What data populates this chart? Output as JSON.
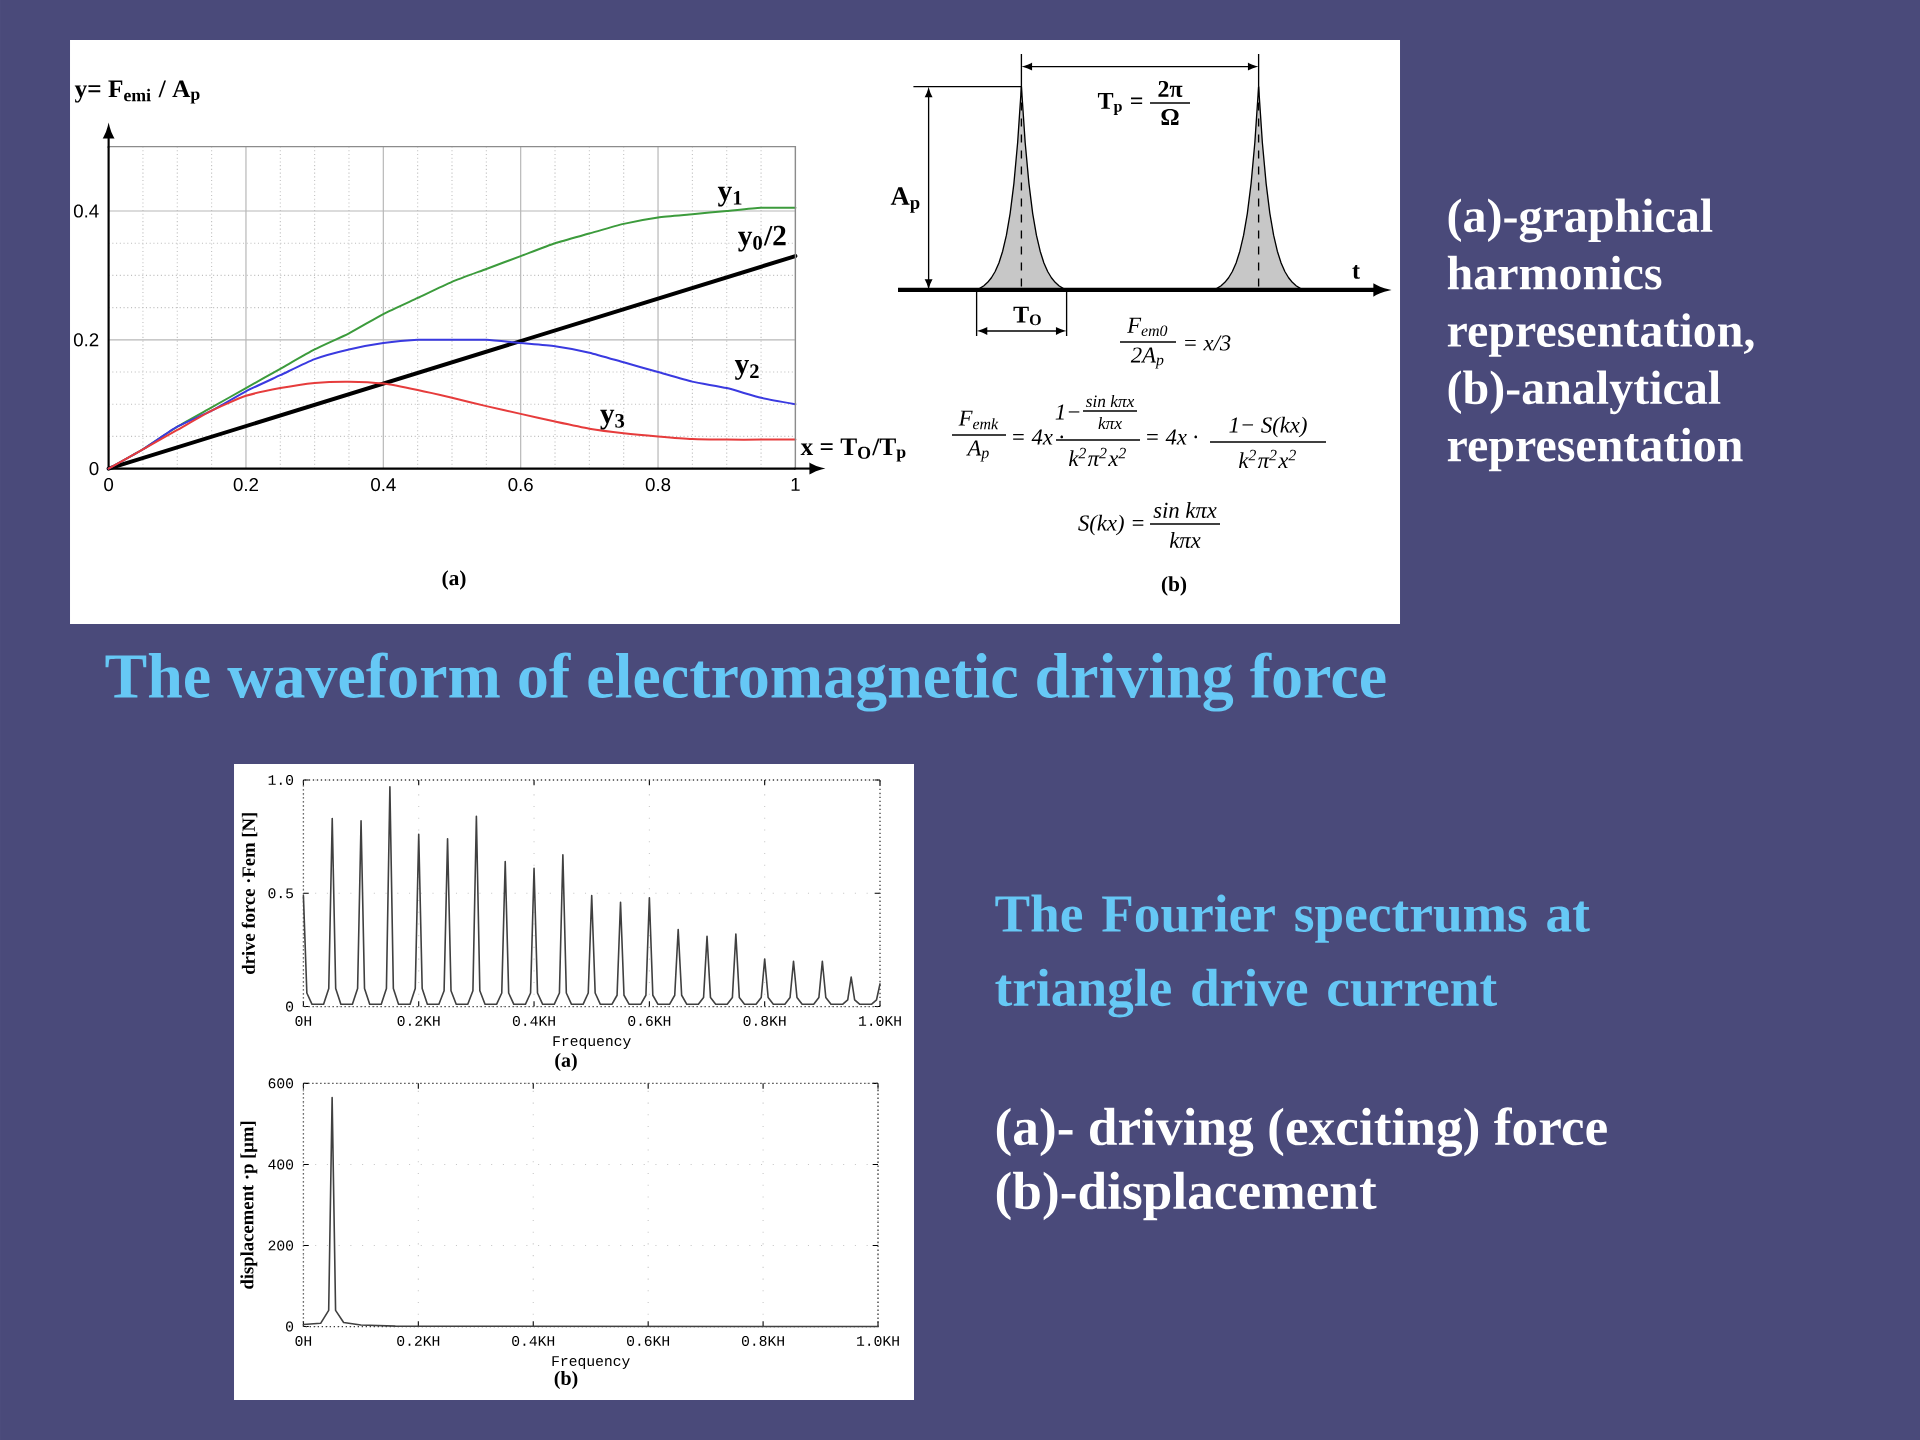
{
  "chart_data": [
    {
      "type": "line",
      "xlabel": "x = T$_{O}$/T$_{p}$",
      "ylabel": "y= F$_{emi}$ / A$_{p}$",
      "x": [
        0,
        0.05,
        0.1,
        0.15,
        0.2,
        0.25,
        0.3,
        0.35,
        0.4,
        0.45,
        0.5,
        0.55,
        0.6,
        0.65,
        0.7,
        0.75,
        0.8,
        0.85,
        0.9,
        0.95,
        1
      ],
      "series": [
        {
          "name": "y$_{1}$",
          "color": "#3c9b3c",
          "values": [
            0,
            0.03,
            0.065,
            0.095,
            0.125,
            0.155,
            0.185,
            0.21,
            0.24,
            0.265,
            0.29,
            0.31,
            0.33,
            0.35,
            0.365,
            0.38,
            0.39,
            0.395,
            0.4,
            0.405,
            0.405
          ]
        },
        {
          "name": "y$_{0}$/2",
          "color": "#000000",
          "x": [
            0,
            1
          ],
          "values": [
            0,
            0.33
          ]
        },
        {
          "name": "y$_{2}$",
          "color": "#3a3ae0",
          "values": [
            0,
            0.03,
            0.065,
            0.09,
            0.12,
            0.145,
            0.17,
            0.185,
            0.195,
            0.2,
            0.2,
            0.2,
            0.195,
            0.19,
            0.18,
            0.165,
            0.15,
            0.135,
            0.125,
            0.11,
            0.1
          ]
        },
        {
          "name": "y$_{3}$",
          "color": "#e63c3c",
          "values": [
            0,
            0.03,
            0.06,
            0.09,
            0.113,
            0.125,
            0.133,
            0.135,
            0.132,
            0.122,
            0.11,
            0.097,
            0.085,
            0.073,
            0.062,
            0.055,
            0.05,
            0.046,
            0.045,
            0.045,
            0.045
          ]
        }
      ],
      "xlim": [
        0,
        1
      ],
      "ylim": [
        0,
        0.5
      ],
      "xticks": [
        0,
        0.2,
        0.4,
        0.6,
        0.8,
        1
      ],
      "yticks": [
        0,
        0.2,
        0.4
      ],
      "grid": true,
      "annotations": [
        "(a)"
      ]
    },
    {
      "type": "other",
      "annotations": [
        "T$_{p}$ =",
        "2π",
        "Ω",
        "A$_{p}$",
        "t",
        "T$_{O}$",
        "F$_{em0}$",
        "2A$_{p}$",
        "= x/3",
        "F$_{emk}$",
        "A$_{p}$",
        "= 4x ·",
        "1−",
        "sin kπx",
        "kπx",
        "k$^{2}$π$^{2}$x$^{2}$",
        "= 4x ·",
        "1− S(kx)",
        "k$^{2}$π$^{2}$x$^{2}$",
        "S(kx) =",
        "sin kπx",
        "kπx",
        "(b)"
      ]
    },
    {
      "type": "other",
      "title": "The waveform of electromagnetic driving force",
      "annotations": [
        "(a)-graphical harmonics representation, (b)-analytical representation"
      ]
    },
    {
      "type": "line",
      "xlabel": "Frequency",
      "ylabel": "drive force ·Fem [N]",
      "x": [
        0,
        0.006,
        0.015,
        0.035,
        0.044,
        0.05,
        0.056,
        0.065,
        0.085,
        0.094,
        0.1,
        0.106,
        0.115,
        0.135,
        0.144,
        0.15,
        0.156,
        0.165,
        0.185,
        0.194,
        0.2,
        0.206,
        0.215,
        0.235,
        0.244,
        0.25,
        0.256,
        0.265,
        0.285,
        0.294,
        0.3,
        0.306,
        0.315,
        0.335,
        0.344,
        0.35,
        0.356,
        0.365,
        0.385,
        0.394,
        0.4,
        0.406,
        0.415,
        0.435,
        0.444,
        0.45,
        0.456,
        0.465,
        0.485,
        0.494,
        0.5,
        0.506,
        0.515,
        0.535,
        0.544,
        0.55,
        0.556,
        0.565,
        0.585,
        0.594,
        0.6,
        0.606,
        0.615,
        0.635,
        0.644,
        0.65,
        0.656,
        0.665,
        0.685,
        0.694,
        0.7,
        0.706,
        0.715,
        0.735,
        0.744,
        0.75,
        0.756,
        0.765,
        0.785,
        0.794,
        0.8,
        0.806,
        0.815,
        0.835,
        0.844,
        0.85,
        0.856,
        0.865,
        0.885,
        0.894,
        0.9,
        0.906,
        0.915,
        0.935,
        0.944,
        0.95,
        0.956,
        0.965,
        0.985,
        0.994,
        1
      ],
      "values": [
        0.49,
        0.06,
        0.01,
        0.01,
        0.08,
        0.83,
        0.08,
        0.01,
        0.01,
        0.08,
        0.82,
        0.08,
        0.01,
        0.01,
        0.08,
        0.97,
        0.08,
        0.01,
        0.01,
        0.08,
        0.76,
        0.08,
        0.01,
        0.01,
        0.07,
        0.74,
        0.07,
        0.01,
        0.01,
        0.07,
        0.84,
        0.07,
        0.01,
        0.01,
        0.06,
        0.64,
        0.06,
        0.01,
        0.01,
        0.06,
        0.61,
        0.06,
        0.01,
        0.01,
        0.06,
        0.67,
        0.06,
        0.01,
        0.01,
        0.06,
        0.49,
        0.06,
        0.01,
        0.01,
        0.05,
        0.46,
        0.05,
        0.01,
        0.01,
        0.05,
        0.48,
        0.05,
        0.01,
        0.01,
        0.05,
        0.34,
        0.05,
        0.01,
        0.01,
        0.04,
        0.31,
        0.04,
        0.01,
        0.01,
        0.04,
        0.32,
        0.04,
        0.01,
        0.01,
        0.04,
        0.21,
        0.04,
        0.01,
        0.01,
        0.04,
        0.2,
        0.04,
        0.01,
        0.01,
        0.04,
        0.2,
        0.04,
        0.01,
        0.01,
        0.03,
        0.13,
        0.03,
        0.01,
        0.01,
        0.03,
        0.1
      ],
      "color": "#404040",
      "xlim": [
        0,
        1
      ],
      "ylim": [
        0,
        1
      ],
      "xticks": [
        {
          "value": 0,
          "label": "0H"
        },
        {
          "value": 0.2,
          "label": "0.2KH"
        },
        {
          "value": 0.4,
          "label": "0.4KH"
        },
        {
          "value": 0.6,
          "label": "0.6KH"
        },
        {
          "value": 0.8,
          "label": "0.8KH"
        },
        {
          "value": 1,
          "label": "1.0KH"
        }
      ],
      "yticks": [
        0,
        0.5,
        {
          "value": 1,
          "label": "1.0"
        }
      ],
      "grid": true,
      "annotations": [
        "(a)"
      ]
    },
    {
      "type": "line",
      "xlabel": "Frequency",
      "ylabel": "displacement ·p [μm]",
      "x": [
        0,
        0.03,
        0.044,
        0.05,
        0.056,
        0.07,
        0.1,
        0.16,
        1
      ],
      "values": [
        5,
        8,
        40,
        565,
        40,
        10,
        4,
        1,
        0
      ],
      "color": "#404040",
      "xlim": [
        0,
        1
      ],
      "ylim": [
        0,
        600
      ],
      "xticks": [
        {
          "value": 0,
          "label": "0H"
        },
        {
          "value": 0.2,
          "label": "0.2KH"
        },
        {
          "value": 0.4,
          "label": "0.4KH"
        },
        {
          "value": 0.6,
          "label": "0.6KH"
        },
        {
          "value": 0.8,
          "label": "0.8KH"
        },
        {
          "value": 1,
          "label": "1.0KH"
        }
      ],
      "yticks": [
        0,
        200,
        400,
        600
      ],
      "grid": true,
      "annotations": [
        "(b)"
      ]
    },
    {
      "type": "other",
      "title": "The Fourier spectrums at triangle drive current",
      "annotations": [
        "(a)- driving (exciting) force",
        "(b)-displacement"
      ]
    }
  ]
}
